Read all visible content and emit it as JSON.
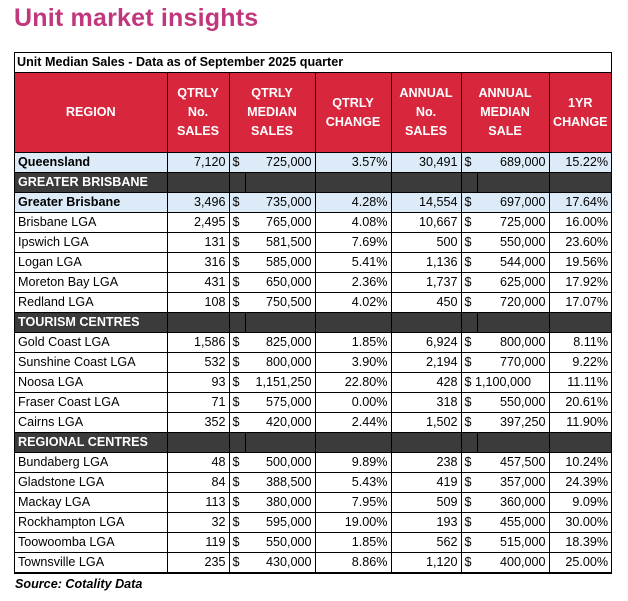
{
  "heading": "Unit market insights",
  "caption": "Unit Median Sales - Data as of September 2025 quarter",
  "columns": {
    "region": "REGION",
    "qtrly_sales": "QTRLY No. SALES",
    "qtrly_median": "QTRLY MEDIAN SALES",
    "qtrly_change": "QTRLY CHANGE",
    "annual_sales": "ANNUAL No. SALES",
    "annual_median": "ANNUAL MEDIAN SALE",
    "yr_change": "1YR CHANGE"
  },
  "currency_symbol": "$",
  "rows": [
    {
      "type": "highlight",
      "region": "Queensland",
      "qtrly_sales": "7,120",
      "qtrly_median": "725,000",
      "qtrly_change": "3.57%",
      "annual_sales": "30,491",
      "annual_median": "689,000",
      "yr_change": "15.22%"
    },
    {
      "type": "section",
      "region": "GREATER BRISBANE"
    },
    {
      "type": "highlight",
      "region": "Greater Brisbane",
      "qtrly_sales": "3,496",
      "qtrly_median": "735,000",
      "qtrly_change": "4.28%",
      "annual_sales": "14,554",
      "annual_median": "697,000",
      "yr_change": "17.64%"
    },
    {
      "type": "row",
      "region": "Brisbane LGA",
      "qtrly_sales": "2,495",
      "qtrly_median": "765,000",
      "qtrly_change": "4.08%",
      "annual_sales": "10,667",
      "annual_median": "725,000",
      "yr_change": "16.00%"
    },
    {
      "type": "row",
      "region": "Ipswich LGA",
      "qtrly_sales": "131",
      "qtrly_median": "581,500",
      "qtrly_change": "7.69%",
      "annual_sales": "500",
      "annual_median": "550,000",
      "yr_change": "23.60%"
    },
    {
      "type": "row",
      "region": "Logan LGA",
      "qtrly_sales": "316",
      "qtrly_median": "585,000",
      "qtrly_change": "5.41%",
      "annual_sales": "1,136",
      "annual_median": "544,000",
      "yr_change": "19.56%"
    },
    {
      "type": "row",
      "region": "Moreton Bay LGA",
      "qtrly_sales": "431",
      "qtrly_median": "650,000",
      "qtrly_change": "2.36%",
      "annual_sales": "1,737",
      "annual_median": "625,000",
      "yr_change": "17.92%"
    },
    {
      "type": "row",
      "region": "Redland LGA",
      "qtrly_sales": "108",
      "qtrly_median": "750,500",
      "qtrly_change": "4.02%",
      "annual_sales": "450",
      "annual_median": "720,000",
      "yr_change": "17.07%"
    },
    {
      "type": "section",
      "region": "TOURISM CENTRES"
    },
    {
      "type": "row",
      "region": "Gold Coast LGA",
      "qtrly_sales": "1,586",
      "qtrly_median": "825,000",
      "qtrly_change": "1.85%",
      "annual_sales": "6,924",
      "annual_median": "800,000",
      "yr_change": "8.11%"
    },
    {
      "type": "row",
      "region": "Sunshine Coast LGA",
      "qtrly_sales": "532",
      "qtrly_median": "800,000",
      "qtrly_change": "3.90%",
      "annual_sales": "2,194",
      "annual_median": "770,000",
      "yr_change": "9.22%"
    },
    {
      "type": "row",
      "region": "Noosa LGA",
      "qtrly_sales": "93",
      "qtrly_median": "1,151,250",
      "qtrly_change": "22.80%",
      "annual_sales": "428",
      "annual_median": "1,100,000",
      "yr_change": "11.11%",
      "annual_compact": true
    },
    {
      "type": "row",
      "region": "Fraser Coast LGA",
      "qtrly_sales": "71",
      "qtrly_median": "575,000",
      "qtrly_change": "0.00%",
      "annual_sales": "318",
      "annual_median": "550,000",
      "yr_change": "20.61%"
    },
    {
      "type": "row",
      "region": "Cairns LGA",
      "qtrly_sales": "352",
      "qtrly_median": "420,000",
      "qtrly_change": "2.44%",
      "annual_sales": "1,502",
      "annual_median": "397,250",
      "yr_change": "11.90%"
    },
    {
      "type": "section",
      "region": "REGIONAL CENTRES"
    },
    {
      "type": "row",
      "region": "Bundaberg LGA",
      "qtrly_sales": "48",
      "qtrly_median": "500,000",
      "qtrly_change": "9.89%",
      "annual_sales": "238",
      "annual_median": "457,500",
      "yr_change": "10.24%"
    },
    {
      "type": "row",
      "region": "Gladstone LGA",
      "qtrly_sales": "84",
      "qtrly_median": "388,500",
      "qtrly_change": "5.43%",
      "annual_sales": "419",
      "annual_median": "357,000",
      "yr_change": "24.39%"
    },
    {
      "type": "row",
      "region": "Mackay LGA",
      "qtrly_sales": "113",
      "qtrly_median": "380,000",
      "qtrly_change": "7.95%",
      "annual_sales": "509",
      "annual_median": "360,000",
      "yr_change": "9.09%"
    },
    {
      "type": "row",
      "region": "Rockhampton LGA",
      "qtrly_sales": "32",
      "qtrly_median": "595,000",
      "qtrly_change": "19.00%",
      "annual_sales": "193",
      "annual_median": "455,000",
      "yr_change": "30.00%"
    },
    {
      "type": "row",
      "region": "Toowoomba LGA",
      "qtrly_sales": "119",
      "qtrly_median": "550,000",
      "qtrly_change": "1.85%",
      "annual_sales": "562",
      "annual_median": "515,000",
      "yr_change": "18.39%"
    },
    {
      "type": "row",
      "region": "Townsville LGA",
      "qtrly_sales": "235",
      "qtrly_median": "430,000",
      "qtrly_change": "8.86%",
      "annual_sales": "1,120",
      "annual_median": "400,000",
      "yr_change": "25.00%"
    }
  ],
  "source": "Source: Cotality Data"
}
